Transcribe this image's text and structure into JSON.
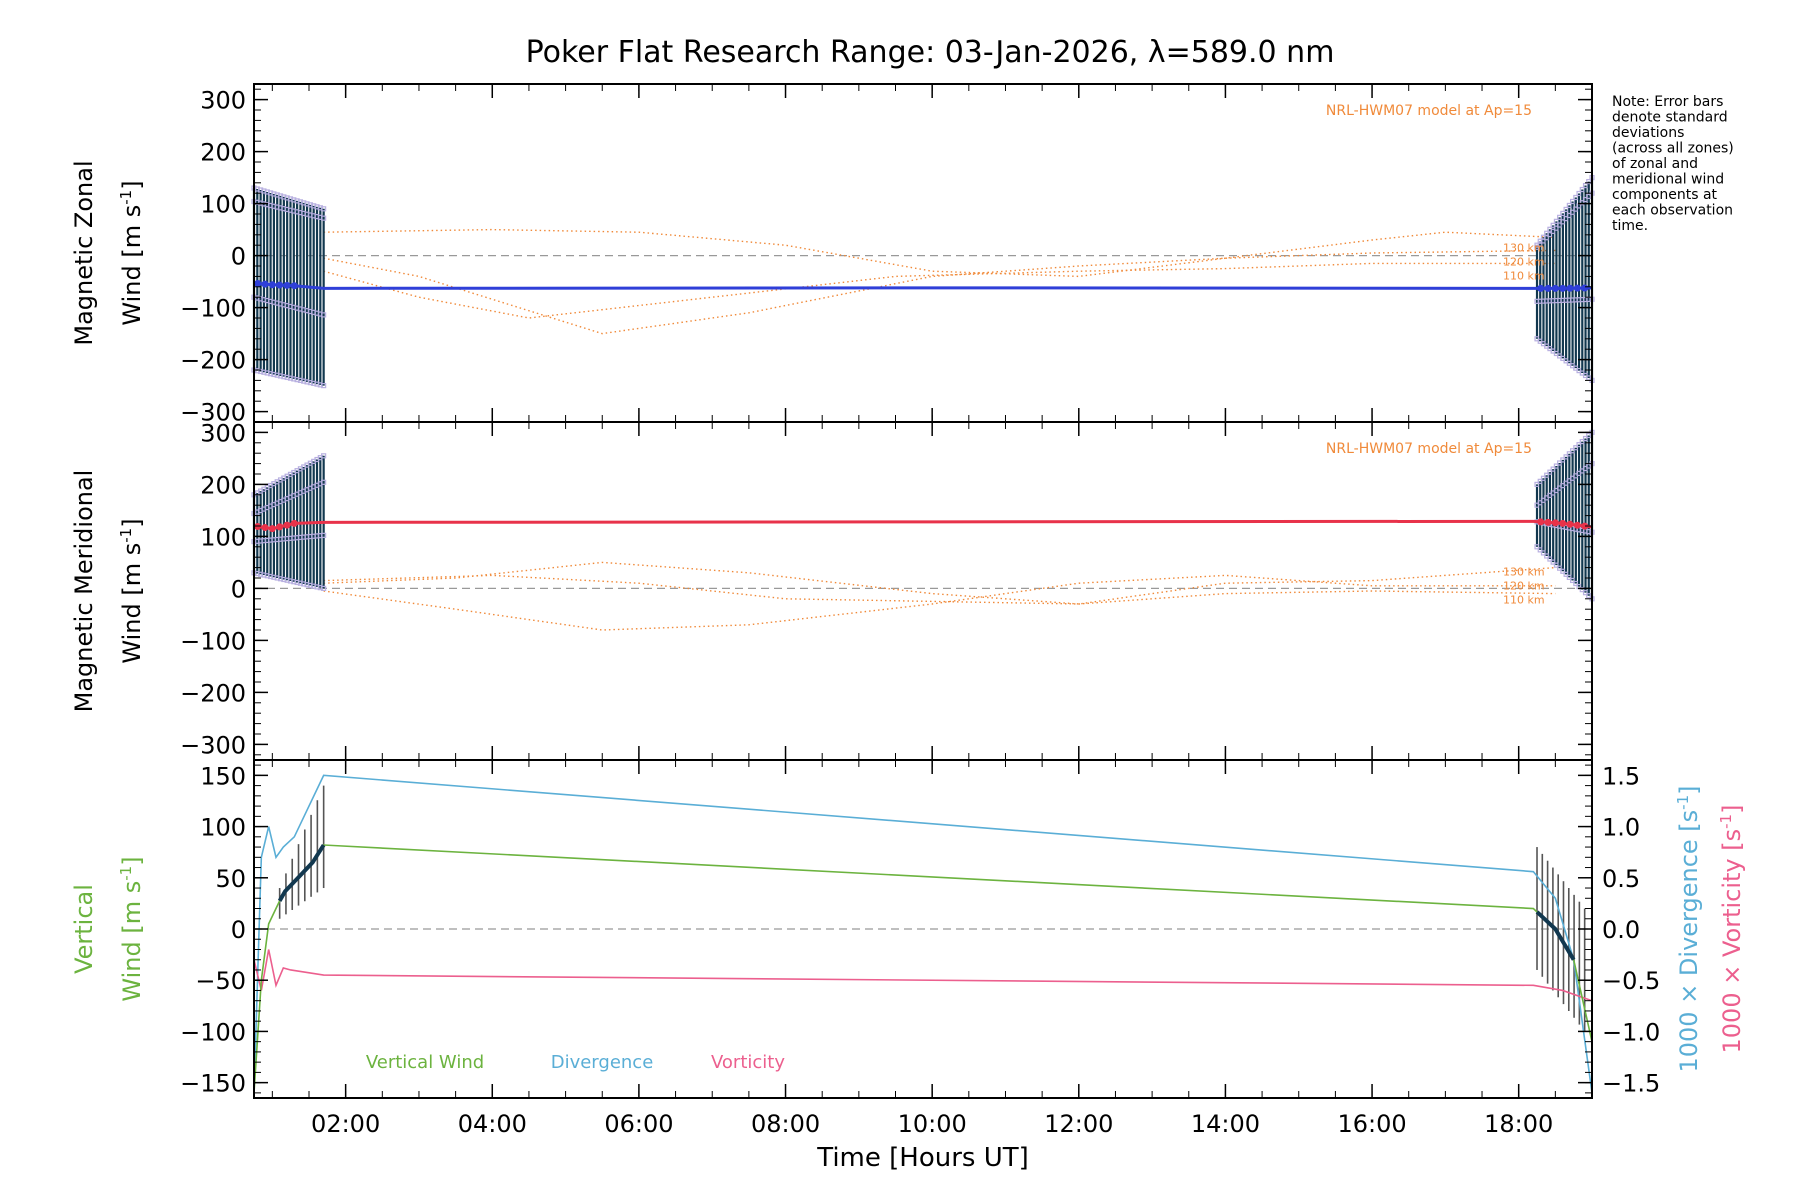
{
  "title": "Poker Flat Research Range: 03-Jan-2026, λ=589.0 nm",
  "note_lines": [
    "Note: Error bars",
    "denote standard",
    "deviations",
    "(across all zones)",
    "of zonal and",
    "meridional wind",
    "components at",
    "each observation",
    "time."
  ],
  "colors": {
    "zonal_fit": "#2f3fd8",
    "meridional_fit": "#e8324a",
    "zone_points": "#b8b0e0",
    "error_bars": "#12384f",
    "model": "#f08a3a",
    "vertical": "#6cb33f",
    "divergence": "#5aaed6",
    "vorticity": "#ec5f8e",
    "zero_line": "#999999"
  },
  "chart_data": [
    {
      "type": "line",
      "name": "zonal",
      "ylabel_line1": "Magnetic Zonal",
      "ylabel_line2": "Wind [m s",
      "ylabel_sup": "-1",
      "ylabel_close": "]",
      "model_label": "NRL-HWM07 model at Ap=15",
      "altitude_labels": [
        "130 km",
        "120 km",
        "110 km"
      ],
      "xlim": [
        0.75,
        19.0
      ],
      "ylim": [
        -320,
        330
      ],
      "yticks": [
        300,
        200,
        100,
        0,
        -100,
        -200,
        -300
      ],
      "ytick_labels": [
        "300",
        "200",
        "100",
        "0",
        "−100",
        "−200",
        "−300"
      ],
      "fit": {
        "x": [
          0.75,
          1.0,
          1.3,
          1.7,
          10.0,
          18.2,
          18.6,
          19.0
        ],
        "y": [
          -53,
          -56,
          -58,
          -63,
          -62,
          -63,
          -63,
          -62
        ]
      },
      "model_series": [
        {
          "name": "130 km",
          "x": [
            1.7,
            4.0,
            6.0,
            8.0,
            10.0,
            12.0,
            14.0,
            16.0,
            17.0,
            18.5
          ],
          "y": [
            45,
            50,
            45,
            20,
            -30,
            -40,
            -5,
            30,
            45,
            35
          ]
        },
        {
          "name": "120 km",
          "x": [
            1.7,
            3.0,
            5.5,
            7.5,
            10.0,
            12.0,
            14.0,
            16.0,
            18.5
          ],
          "y": [
            -5,
            -40,
            -150,
            -110,
            -40,
            -20,
            -5,
            5,
            10
          ]
        },
        {
          "name": "110 km",
          "x": [
            1.7,
            3.0,
            4.5,
            7.0,
            9.5,
            12.0,
            14.0,
            16.0,
            18.5
          ],
          "y": [
            -30,
            -80,
            -120,
            -80,
            -40,
            -30,
            -25,
            -15,
            -15
          ]
        }
      ],
      "band_early": {
        "x0": 0.75,
        "x1": 1.7,
        "lower_start": -220,
        "lower_end": -250,
        "upper_start": 130,
        "upper_end": 90
      },
      "band_late": {
        "x0": 18.25,
        "x1": 19.0,
        "lower_start": -160,
        "lower_end": -240,
        "upper_start": 20,
        "upper_end": 150
      }
    },
    {
      "type": "line",
      "name": "meridional",
      "ylabel_line1": "Magnetic Meridional",
      "ylabel_line2": "Wind [m s",
      "ylabel_sup": "-1",
      "ylabel_close": "]",
      "model_label": "NRL-HWM07 model at Ap=15",
      "altitude_labels": [
        "130 km",
        "120 km",
        "110 km"
      ],
      "xlim": [
        0.75,
        19.0
      ],
      "ylim": [
        -330,
        320
      ],
      "yticks": [
        300,
        200,
        100,
        0,
        -100,
        -200,
        -300
      ],
      "ytick_labels": [
        "300",
        "200",
        "100",
        "0",
        "−100",
        "−200",
        "−300"
      ],
      "fit": {
        "x": [
          0.75,
          1.0,
          1.3,
          1.7,
          10.0,
          18.2,
          18.6,
          19.0
        ],
        "y": [
          120,
          115,
          125,
          127,
          128,
          129,
          125,
          118
        ]
      },
      "model_series": [
        {
          "name": "130 km",
          "x": [
            1.7,
            3.5,
            5.5,
            7.5,
            10.0,
            12.0,
            14.0,
            16.0,
            18.5
          ],
          "y": [
            10,
            20,
            50,
            30,
            -10,
            -30,
            10,
            15,
            40
          ]
        },
        {
          "name": "120 km",
          "x": [
            1.7,
            3.5,
            5.5,
            7.5,
            10.0,
            12.0,
            14.0,
            16.0,
            18.5
          ],
          "y": [
            -5,
            -40,
            -80,
            -70,
            -30,
            10,
            25,
            5,
            5
          ]
        },
        {
          "name": "110 km",
          "x": [
            1.7,
            4.0,
            6.0,
            8.0,
            10.0,
            12.0,
            14.0,
            16.0,
            18.5
          ],
          "y": [
            15,
            25,
            10,
            -20,
            -25,
            -30,
            -10,
            -5,
            -10
          ]
        }
      ],
      "band_early": {
        "x0": 0.75,
        "x1": 1.7,
        "lower_start": 30,
        "lower_end": 0,
        "upper_start": 180,
        "upper_end": 255
      },
      "band_late": {
        "x0": 18.25,
        "x1": 19.0,
        "lower_start": 80,
        "lower_end": -20,
        "upper_start": 200,
        "upper_end": 300
      }
    },
    {
      "type": "line",
      "name": "vertical",
      "ylabel_line1": "Vertical",
      "ylabel_line2": "Wind [m s",
      "ylabel_sup": "-1",
      "ylabel_close": "]",
      "right_ylabel_div": "1000 × Divergence [s",
      "right_ylabel_vort": "1000 × Vorticity [s",
      "right_sup": "-1",
      "right_close": "]",
      "xlim": [
        0.75,
        19.0
      ],
      "ylim": [
        -165,
        165
      ],
      "yticks": [
        150,
        100,
        50,
        0,
        -50,
        -100,
        -150
      ],
      "ytick_labels": [
        "150",
        "100",
        "50",
        "0",
        "−50",
        "−100",
        "−150"
      ],
      "y2lim": [
        -1.65,
        1.65
      ],
      "y2ticks": [
        1.5,
        1.0,
        0.5,
        0.0,
        -0.5,
        -1.0,
        -1.5
      ],
      "y2tick_labels": [
        "1.5",
        "1.0",
        "0.5",
        "0.0",
        "−0.5",
        "−1.0",
        "−1.5"
      ],
      "xticks": [
        2,
        4,
        6,
        8,
        10,
        12,
        14,
        16,
        18
      ],
      "xtick_labels": [
        "02:00",
        "04:00",
        "06:00",
        "08:00",
        "10:00",
        "12:00",
        "14:00",
        "16:00",
        "18:00"
      ],
      "xlabel": "Time [Hours UT]",
      "legend": [
        "Vertical Wind",
        "Divergence",
        "Vorticity"
      ],
      "vertical": {
        "x": [
          0.75,
          0.85,
          0.95,
          1.05,
          1.15,
          1.35,
          1.55,
          1.7,
          18.2,
          18.5,
          18.75,
          19.0
        ],
        "y": [
          -160,
          -50,
          5,
          20,
          35,
          50,
          65,
          82,
          20,
          0,
          -30,
          -110
        ]
      },
      "divergence": {
        "x": [
          0.75,
          0.85,
          0.95,
          1.05,
          1.15,
          1.3,
          1.5,
          1.7,
          18.2,
          18.5,
          18.75,
          19.0
        ],
        "y": [
          -1.6,
          0.7,
          1.0,
          0.7,
          0.8,
          0.9,
          1.2,
          1.5,
          0.56,
          0.3,
          -0.3,
          -1.6
        ]
      },
      "vorticity": {
        "x": [
          0.75,
          0.85,
          0.95,
          1.05,
          1.15,
          1.25,
          1.7,
          18.2,
          18.6,
          19.0
        ],
        "y": [
          -0.3,
          -0.6,
          -0.2,
          -0.55,
          -0.38,
          -0.4,
          -0.45,
          -0.55,
          -0.6,
          -0.7
        ]
      },
      "err_early": {
        "x0": 1.1,
        "x1": 1.7,
        "y_low_start": 10,
        "y_low_end": 40,
        "y_high_start": 40,
        "y_high_end": 140
      },
      "err_late": {
        "x0": 18.25,
        "x1": 18.9,
        "y_low_start": -40,
        "y_low_end": -100,
        "y_high_start": 80,
        "y_high_end": 20
      }
    }
  ]
}
